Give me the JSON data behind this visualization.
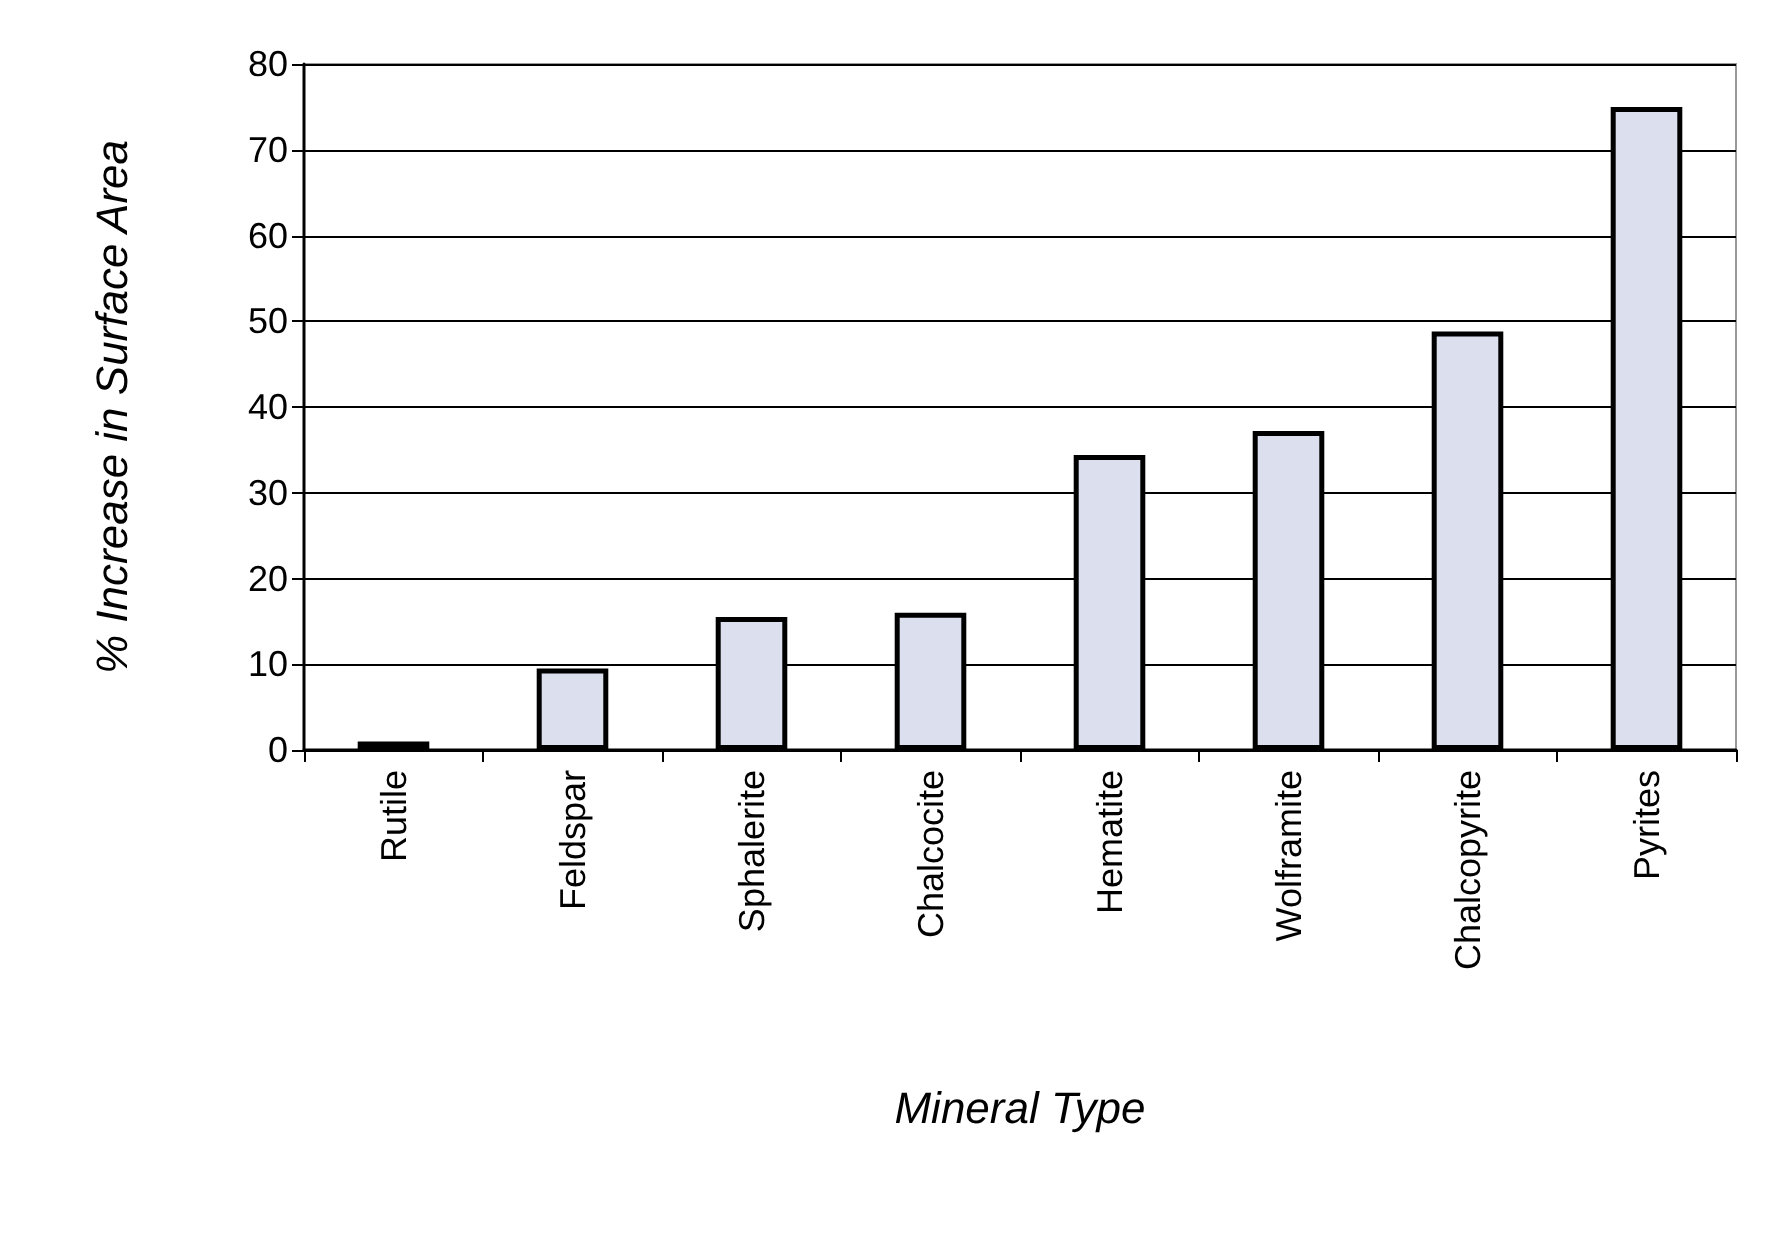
{
  "chart_data": {
    "type": "bar",
    "xlabel": "Mineral Type",
    "ylabel": "% Increase in Surface Area",
    "categories": [
      "Rutile",
      "Feldspar",
      "Sphalerite",
      "Chalcocite",
      "Hematite",
      "Wolframite",
      "Chalcopyrite",
      "Pyrites"
    ],
    "values": [
      1,
      9.5,
      15.5,
      16,
      34.4,
      37.2,
      48.8,
      75
    ],
    "color": "#dcdfee",
    "ylim": [
      0,
      80
    ],
    "yticks": [
      0,
      10,
      20,
      30,
      40,
      50,
      60,
      70,
      80
    ],
    "grid": "y"
  }
}
